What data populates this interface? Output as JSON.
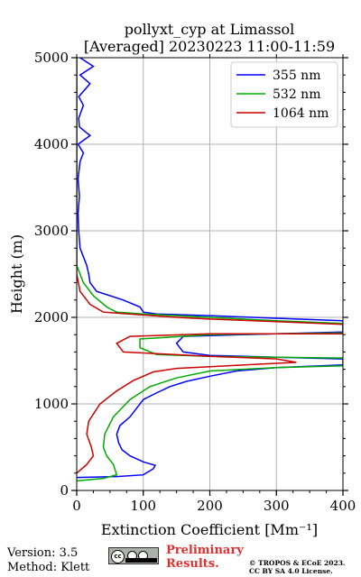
{
  "chart_data": {
    "type": "line",
    "title": "pollyxt_cyp at Limassol",
    "subtitle": "[Averaged] 20230223 11:00-11:59",
    "xlabel": "Extinction Coefficient [Mm⁻¹]",
    "ylabel": "Height (m)",
    "xlim": [
      0,
      400
    ],
    "ylim": [
      0,
      5000
    ],
    "xticks": [
      "0",
      "100",
      "200",
      "300",
      "400"
    ],
    "yticks": [
      "0",
      "1000",
      "2000",
      "3000",
      "4000",
      "5000"
    ],
    "grid": true,
    "legend_position": "top-right",
    "series": [
      {
        "name": "355 nm",
        "color": "#0000ff",
        "points": [
          [
            0,
            150
          ],
          [
            60,
            160
          ],
          [
            100,
            180
          ],
          [
            115,
            250
          ],
          [
            118,
            290
          ],
          [
            100,
            330
          ],
          [
            80,
            400
          ],
          [
            68,
            470
          ],
          [
            63,
            550
          ],
          [
            60,
            650
          ],
          [
            65,
            750
          ],
          [
            80,
            850
          ],
          [
            90,
            950
          ],
          [
            100,
            1050
          ],
          [
            118,
            1120
          ],
          [
            140,
            1200
          ],
          [
            165,
            1260
          ],
          [
            200,
            1320
          ],
          [
            240,
            1380
          ],
          [
            300,
            1420
          ],
          [
            400,
            1450
          ],
          [
            400,
            1520
          ],
          [
            300,
            1540
          ],
          [
            200,
            1560
          ],
          [
            160,
            1600
          ],
          [
            150,
            1700
          ],
          [
            160,
            1780
          ],
          [
            300,
            1810
          ],
          [
            400,
            1830
          ],
          [
            400,
            1960
          ],
          [
            300,
            1990
          ],
          [
            200,
            2020
          ],
          [
            120,
            2040
          ],
          [
            100,
            2060
          ],
          [
            95,
            2120
          ],
          [
            70,
            2200
          ],
          [
            50,
            2250
          ],
          [
            30,
            2300
          ],
          [
            20,
            2400
          ],
          [
            18,
            2500
          ],
          [
            15,
            2600
          ],
          [
            10,
            2700
          ],
          [
            5,
            2800
          ],
          [
            3,
            3000
          ],
          [
            2,
            3200
          ],
          [
            4,
            3400
          ],
          [
            2,
            3600
          ],
          [
            5,
            3800
          ],
          [
            10,
            3900
          ],
          [
            2,
            4000
          ],
          [
            20,
            4100
          ],
          [
            4,
            4200
          ],
          [
            3,
            4300
          ],
          [
            10,
            4450
          ],
          [
            3,
            4550
          ],
          [
            20,
            4700
          ],
          [
            5,
            4800
          ],
          [
            25,
            4900
          ],
          [
            5,
            5000
          ]
        ]
      },
      {
        "name": "532 nm",
        "color": "#00aa00",
        "points": [
          [
            0,
            110
          ],
          [
            40,
            140
          ],
          [
            60,
            180
          ],
          [
            55,
            300
          ],
          [
            45,
            400
          ],
          [
            40,
            500
          ],
          [
            42,
            650
          ],
          [
            55,
            850
          ],
          [
            80,
            1050
          ],
          [
            110,
            1200
          ],
          [
            150,
            1300
          ],
          [
            200,
            1380
          ],
          [
            300,
            1420
          ],
          [
            400,
            1440
          ],
          [
            400,
            1530
          ],
          [
            300,
            1540
          ],
          [
            200,
            1550
          ],
          [
            120,
            1570
          ],
          [
            95,
            1650
          ],
          [
            95,
            1750
          ],
          [
            200,
            1800
          ],
          [
            400,
            1820
          ],
          [
            400,
            1930
          ],
          [
            300,
            1960
          ],
          [
            200,
            2000
          ],
          [
            100,
            2040
          ],
          [
            60,
            2060
          ],
          [
            45,
            2120
          ],
          [
            25,
            2250
          ],
          [
            10,
            2400
          ],
          [
            5,
            2500
          ],
          [
            0,
            2600
          ],
          [
            0,
            5000
          ]
        ]
      },
      {
        "name": "1064 nm",
        "color": "#cc0000",
        "points": [
          [
            0,
            200
          ],
          [
            15,
            300
          ],
          [
            25,
            400
          ],
          [
            22,
            500
          ],
          [
            15,
            650
          ],
          [
            18,
            800
          ],
          [
            35,
            1000
          ],
          [
            60,
            1150
          ],
          [
            85,
            1270
          ],
          [
            115,
            1370
          ],
          [
            150,
            1410
          ],
          [
            330,
            1480
          ],
          [
            300,
            1520
          ],
          [
            200,
            1550
          ],
          [
            70,
            1600
          ],
          [
            60,
            1700
          ],
          [
            80,
            1780
          ],
          [
            200,
            1810
          ],
          [
            400,
            1810
          ],
          [
            400,
            1920
          ],
          [
            300,
            1950
          ],
          [
            200,
            1980
          ],
          [
            150,
            2000
          ],
          [
            40,
            2060
          ],
          [
            20,
            2150
          ],
          [
            5,
            2300
          ],
          [
            0,
            2500
          ],
          [
            0,
            5000
          ]
        ]
      }
    ]
  },
  "footer": {
    "version": "Version: 3.5",
    "method": "Method: Klett",
    "cc_label": "cc",
    "preliminary_line1": "Preliminary",
    "preliminary_line2": "Results.",
    "copyright_line1": "© TROPOS & ECoE 2023.",
    "copyright_line2": "CC BY SA 4.0 License."
  }
}
